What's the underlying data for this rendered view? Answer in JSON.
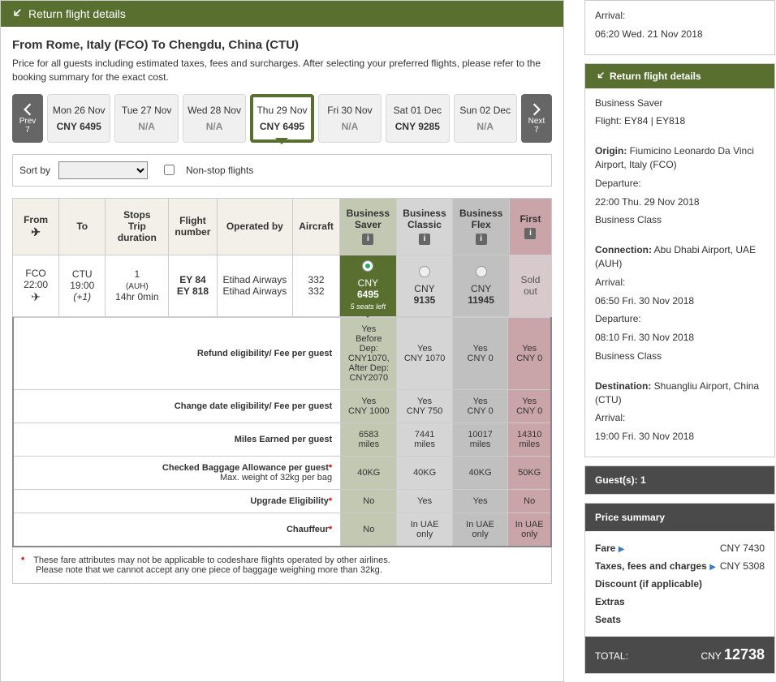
{
  "header": {
    "title": "Return flight details"
  },
  "route": {
    "title": "From Rome, Italy (FCO) To Chengdu, China (CTU)",
    "description": "Price for all guests including estimated taxes, fees and surcharges. After selecting your preferred flights, please refer to the booking summary for the exact cost."
  },
  "dateStrip": {
    "prev": {
      "label": "Prev",
      "count": "7"
    },
    "next": {
      "label": "Next",
      "count": "7"
    },
    "cells": [
      {
        "day": "Mon 26 Nov",
        "price": "CNY 6495",
        "na": false
      },
      {
        "day": "Tue 27 Nov",
        "price": "N/A",
        "na": true
      },
      {
        "day": "Wed 28 Nov",
        "price": "N/A",
        "na": true
      },
      {
        "day": "Thu 29 Nov",
        "price": "CNY 6495",
        "na": false,
        "selected": true
      },
      {
        "day": "Fri 30 Nov",
        "price": "N/A",
        "na": true
      },
      {
        "day": "Sat 01 Dec",
        "price": "CNY 9285",
        "na": false
      },
      {
        "day": "Sun 02 Dec",
        "price": "N/A",
        "na": true
      }
    ]
  },
  "sort": {
    "label": "Sort by",
    "nonstop": "Non-stop flights"
  },
  "table": {
    "headers": {
      "from": "From",
      "to": "To",
      "stops": "Stops",
      "duration": "Trip duration",
      "flightNum": "Flight number",
      "operated": "Operated by",
      "aircraft": "Aircraft",
      "saver": "Business Saver",
      "classic": "Business Classic",
      "flex": "Business Flex",
      "first": "First"
    },
    "row": {
      "from": "FCO",
      "fromTime": "22:00",
      "to": "CTU",
      "toTime": "19:00",
      "toDay": "(+1)",
      "stops": "1",
      "stopCode": "(AUH)",
      "duration": "14hr 0min",
      "flight1": "EY 84",
      "flight2": "EY 818",
      "op1": "Etihad Airways",
      "op2": "Etihad Airways",
      "ac1": "332",
      "ac2": "332"
    },
    "fares": {
      "saver": {
        "cur": "CNY",
        "amt": "6495",
        "seats": "5 seats left",
        "selected": true
      },
      "classic": {
        "cur": "CNY",
        "amt": "9135"
      },
      "flex": {
        "cur": "CNY",
        "amt": "11945"
      },
      "first": {
        "label": "Sold out"
      }
    }
  },
  "details": {
    "rows": [
      {
        "label": "Refund eligibility/ Fee per guest",
        "saver": "Yes\nBefore Dep: CNY1070, After Dep: CNY2070",
        "classic": "Yes\nCNY 1070",
        "flex": "Yes\nCNY 0",
        "first": "Yes\nCNY 0"
      },
      {
        "label": "Change date eligibility/ Fee per guest",
        "saver": "Yes\nCNY 1000",
        "classic": "Yes\nCNY 750",
        "flex": "Yes\nCNY 0",
        "first": "Yes\nCNY 0"
      },
      {
        "label": "Miles Earned per guest",
        "saver": "6583 miles",
        "classic": "7441 miles",
        "flex": "10017 miles",
        "first": "14310 miles"
      },
      {
        "label": "Checked Baggage Allowance per guest",
        "sub": "Max. weight of 32kg per bag",
        "star": true,
        "saver": "40KG",
        "classic": "40KG",
        "flex": "40KG",
        "first": "50KG"
      },
      {
        "label": "Upgrade Eligibility",
        "star": true,
        "saver": "No",
        "classic": "Yes",
        "flex": "Yes",
        "first": "No"
      },
      {
        "label": "Chauffeur",
        "star": true,
        "saver": "No",
        "classic": "In UAE only",
        "flex": "In UAE only",
        "first": "In UAE only"
      }
    ]
  },
  "footnote": {
    "line1": "These fare attributes may not be applicable to codeshare flights operated by other airlines.",
    "line2": "Please note that we cannot accept any one piece of baggage weighing more than 32kg."
  },
  "sidebar": {
    "top": {
      "arrival": "Arrival:",
      "arrivalTime": "06:20 Wed. 21 Nov 2018"
    },
    "return": {
      "title": "Return flight details",
      "class": "Business Saver",
      "flight": "Flight: EY84 | EY818",
      "originLbl": "Origin:",
      "origin": " Fiumicino Leonardo Da Vinci Airport, Italy (FCO)",
      "dep1Lbl": "Departure:",
      "dep1": "22:00 Thu. 29 Nov 2018",
      "dep1Class": "Business Class",
      "connLbl": "Connection:",
      "conn": " Abu Dhabi Airport, UAE (AUH)",
      "arr1Lbl": "Arrival:",
      "arr1": "06:50 Fri. 30 Nov 2018",
      "dep2Lbl": "Departure:",
      "dep2": "08:10 Fri. 30 Nov 2018",
      "dep2Class": "Business Class",
      "destLbl": "Destination:",
      "dest": " Shuangliu Airport, China (CTU)",
      "arr2Lbl": "Arrival:",
      "arr2": "19:00 Fri. 30 Nov 2018"
    },
    "guests": "Guest(s): 1",
    "priceTitle": "Price summary",
    "price": {
      "fare": "Fare",
      "fareAmt": "CNY 7430",
      "taxes": "Taxes, fees and charges",
      "taxesAmt": "CNY 5308",
      "discount": "Discount (if applicable)",
      "extras": "Extras",
      "seats": "Seats"
    },
    "total": {
      "label": "TOTAL:",
      "cur": "CNY",
      "amt": "12738"
    }
  }
}
